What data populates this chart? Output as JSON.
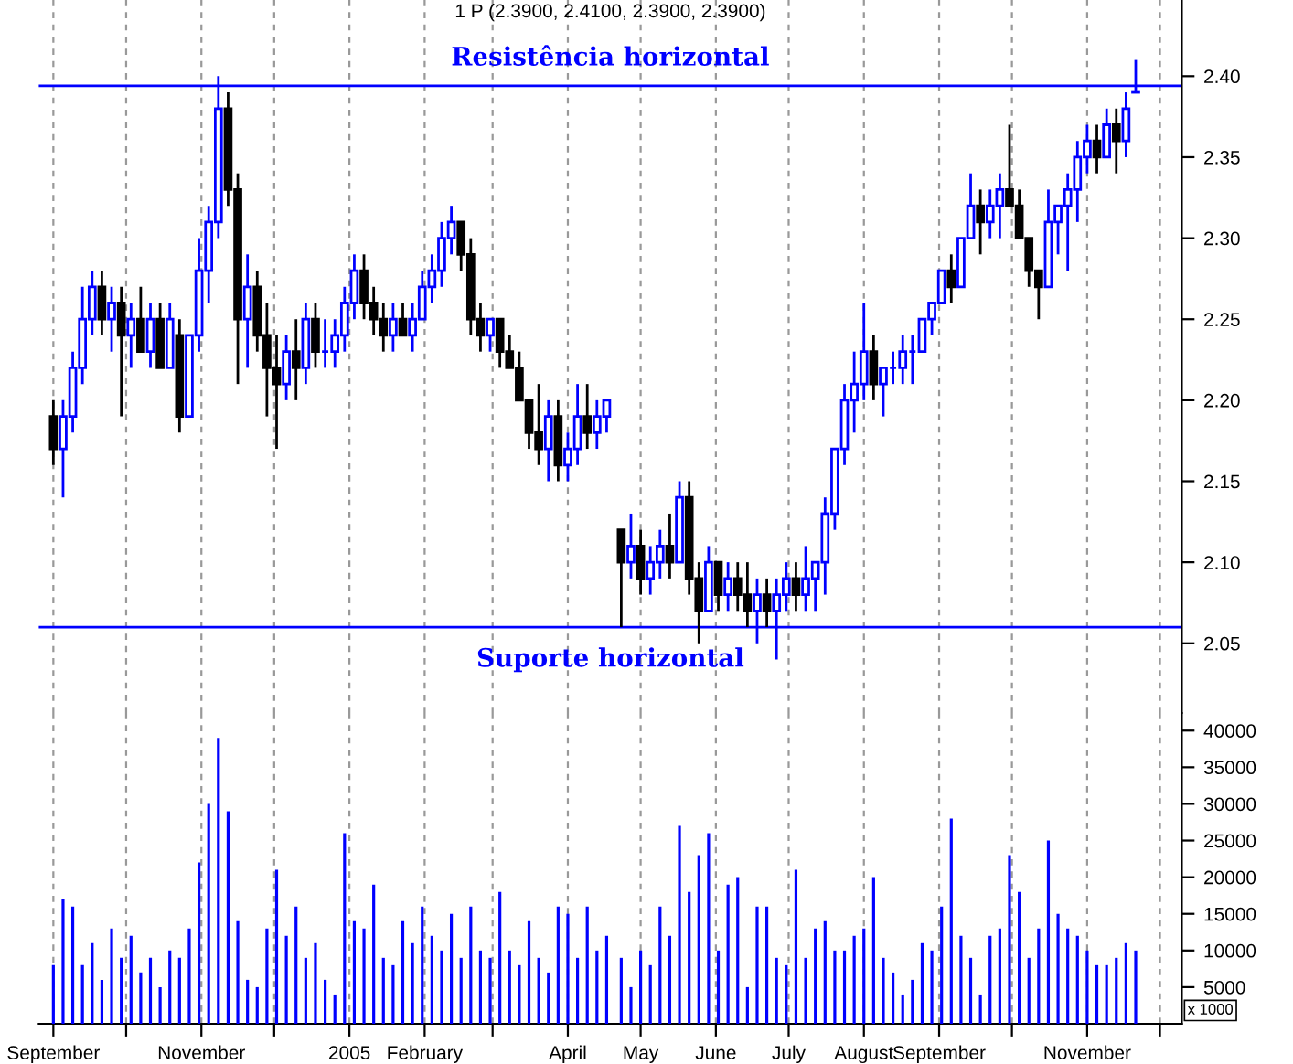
{
  "chart_data": [
    {
      "type": "candlestick",
      "title": "1 P (2.3900, 2.4100, 2.3900, 2.3900)",
      "x": [
        "2004-09-01",
        "2004-09-05",
        "2004-09-09",
        "2004-09-13",
        "2004-09-17",
        "2004-09-21",
        "2004-09-25",
        "2004-09-29",
        "2004-10-03",
        "2004-10-07",
        "2004-10-11",
        "2004-10-15",
        "2004-10-19",
        "2004-10-23",
        "2004-10-27",
        "2004-10-31",
        "2004-11-04",
        "2004-11-08",
        "2004-11-12",
        "2004-11-16",
        "2004-11-20",
        "2004-11-24",
        "2004-11-28",
        "2004-12-02",
        "2004-12-06",
        "2004-12-10",
        "2004-12-14",
        "2004-12-18",
        "2004-12-22",
        "2004-12-26",
        "2004-12-30",
        "2005-01-03",
        "2005-01-07",
        "2005-01-11",
        "2005-01-15",
        "2005-01-19",
        "2005-01-23",
        "2005-01-27",
        "2005-01-31",
        "2005-02-04",
        "2005-02-08",
        "2005-02-12",
        "2005-02-16",
        "2005-02-20",
        "2005-02-24",
        "2005-02-28",
        "2005-03-04",
        "2005-03-08",
        "2005-03-12",
        "2005-03-16",
        "2005-03-20",
        "2005-03-24",
        "2005-03-28",
        "2005-04-01",
        "2005-04-05",
        "2005-04-09",
        "2005-04-13",
        "2005-04-17",
        "2005-04-23",
        "2005-04-27",
        "2005-05-01",
        "2005-05-05",
        "2005-05-09",
        "2005-05-13",
        "2005-05-17",
        "2005-05-21",
        "2005-05-25",
        "2005-05-29",
        "2005-06-02",
        "2005-06-06",
        "2005-06-10",
        "2005-06-14",
        "2005-06-18",
        "2005-06-22",
        "2005-06-26",
        "2005-06-30",
        "2005-07-04",
        "2005-07-08",
        "2005-07-12",
        "2005-07-16",
        "2005-07-20",
        "2005-07-24",
        "2005-07-28",
        "2005-08-01",
        "2005-08-05",
        "2005-08-09",
        "2005-08-13",
        "2005-08-17",
        "2005-08-21",
        "2005-08-25",
        "2005-08-29",
        "2005-09-02",
        "2005-09-06",
        "2005-09-10",
        "2005-09-14",
        "2005-09-18",
        "2005-09-22",
        "2005-09-26",
        "2005-09-30",
        "2005-10-04",
        "2005-10-08",
        "2005-10-12",
        "2005-10-16",
        "2005-10-20",
        "2005-10-24",
        "2005-10-28",
        "2005-11-01",
        "2005-11-05",
        "2005-11-09",
        "2005-11-13",
        "2005-11-17",
        "2005-11-21"
      ],
      "ohlc": [
        [
          2.19,
          2.2,
          2.16,
          2.17
        ],
        [
          2.17,
          2.2,
          2.14,
          2.19
        ],
        [
          2.19,
          2.23,
          2.18,
          2.22
        ],
        [
          2.22,
          2.27,
          2.21,
          2.25
        ],
        [
          2.25,
          2.28,
          2.24,
          2.27
        ],
        [
          2.27,
          2.28,
          2.24,
          2.25
        ],
        [
          2.25,
          2.27,
          2.23,
          2.26
        ],
        [
          2.26,
          2.27,
          2.19,
          2.24
        ],
        [
          2.24,
          2.26,
          2.22,
          2.25
        ],
        [
          2.25,
          2.27,
          2.23,
          2.23
        ],
        [
          2.23,
          2.26,
          2.22,
          2.25
        ],
        [
          2.25,
          2.26,
          2.22,
          2.22
        ],
        [
          2.22,
          2.26,
          2.22,
          2.25
        ],
        [
          2.24,
          2.25,
          2.18,
          2.19
        ],
        [
          2.19,
          2.24,
          2.19,
          2.24
        ],
        [
          2.24,
          2.3,
          2.23,
          2.28
        ],
        [
          2.28,
          2.32,
          2.26,
          2.31
        ],
        [
          2.31,
          2.4,
          2.3,
          2.38
        ],
        [
          2.38,
          2.39,
          2.32,
          2.33
        ],
        [
          2.33,
          2.34,
          2.21,
          2.25
        ],
        [
          2.25,
          2.29,
          2.22,
          2.27
        ],
        [
          2.27,
          2.28,
          2.23,
          2.24
        ],
        [
          2.24,
          2.26,
          2.19,
          2.22
        ],
        [
          2.22,
          2.24,
          2.17,
          2.21
        ],
        [
          2.21,
          2.24,
          2.2,
          2.23
        ],
        [
          2.23,
          2.25,
          2.2,
          2.22
        ],
        [
          2.22,
          2.26,
          2.21,
          2.25
        ],
        [
          2.25,
          2.26,
          2.22,
          2.23
        ],
        [
          2.23,
          2.25,
          2.22,
          2.23
        ],
        [
          2.23,
          2.25,
          2.22,
          2.24
        ],
        [
          2.24,
          2.27,
          2.23,
          2.26
        ],
        [
          2.26,
          2.29,
          2.25,
          2.28
        ],
        [
          2.28,
          2.29,
          2.25,
          2.26
        ],
        [
          2.26,
          2.27,
          2.24,
          2.25
        ],
        [
          2.25,
          2.26,
          2.23,
          2.24
        ],
        [
          2.24,
          2.26,
          2.23,
          2.25
        ],
        [
          2.25,
          2.26,
          2.24,
          2.24
        ],
        [
          2.24,
          2.26,
          2.23,
          2.25
        ],
        [
          2.25,
          2.28,
          2.25,
          2.27
        ],
        [
          2.27,
          2.29,
          2.26,
          2.28
        ],
        [
          2.28,
          2.31,
          2.27,
          2.3
        ],
        [
          2.3,
          2.32,
          2.29,
          2.31
        ],
        [
          2.31,
          2.31,
          2.28,
          2.29
        ],
        [
          2.29,
          2.3,
          2.24,
          2.25
        ],
        [
          2.25,
          2.26,
          2.23,
          2.24
        ],
        [
          2.24,
          2.25,
          2.23,
          2.25
        ],
        [
          2.25,
          2.25,
          2.22,
          2.23
        ],
        [
          2.23,
          2.24,
          2.22,
          2.22
        ],
        [
          2.22,
          2.23,
          2.2,
          2.2
        ],
        [
          2.2,
          2.2,
          2.17,
          2.18
        ],
        [
          2.18,
          2.21,
          2.16,
          2.17
        ],
        [
          2.17,
          2.2,
          2.15,
          2.19
        ],
        [
          2.19,
          2.2,
          2.15,
          2.16
        ],
        [
          2.16,
          2.18,
          2.15,
          2.17
        ],
        [
          2.17,
          2.21,
          2.16,
          2.19
        ],
        [
          2.19,
          2.21,
          2.17,
          2.18
        ],
        [
          2.18,
          2.2,
          2.17,
          2.19
        ],
        [
          2.19,
          2.2,
          2.18,
          2.2
        ],
        [
          2.12,
          2.12,
          2.06,
          2.1
        ],
        [
          2.1,
          2.13,
          2.09,
          2.11
        ],
        [
          2.11,
          2.12,
          2.08,
          2.09
        ],
        [
          2.09,
          2.11,
          2.08,
          2.1
        ],
        [
          2.1,
          2.12,
          2.09,
          2.11
        ],
        [
          2.11,
          2.13,
          2.09,
          2.1
        ],
        [
          2.1,
          2.15,
          2.1,
          2.14
        ],
        [
          2.14,
          2.15,
          2.08,
          2.09
        ],
        [
          2.09,
          2.1,
          2.05,
          2.07
        ],
        [
          2.07,
          2.11,
          2.07,
          2.1
        ],
        [
          2.1,
          2.1,
          2.07,
          2.08
        ],
        [
          2.08,
          2.1,
          2.07,
          2.09
        ],
        [
          2.09,
          2.1,
          2.07,
          2.08
        ],
        [
          2.08,
          2.1,
          2.06,
          2.07
        ],
        [
          2.07,
          2.09,
          2.05,
          2.08
        ],
        [
          2.08,
          2.09,
          2.06,
          2.07
        ],
        [
          2.07,
          2.09,
          2.04,
          2.08
        ],
        [
          2.08,
          2.1,
          2.07,
          2.09
        ],
        [
          2.09,
          2.1,
          2.07,
          2.08
        ],
        [
          2.08,
          2.11,
          2.07,
          2.09
        ],
        [
          2.09,
          2.1,
          2.07,
          2.1
        ],
        [
          2.1,
          2.14,
          2.08,
          2.13
        ],
        [
          2.13,
          2.17,
          2.12,
          2.17
        ],
        [
          2.17,
          2.21,
          2.16,
          2.2
        ],
        [
          2.2,
          2.23,
          2.18,
          2.21
        ],
        [
          2.21,
          2.26,
          2.2,
          2.23
        ],
        [
          2.23,
          2.24,
          2.2,
          2.21
        ],
        [
          2.21,
          2.22,
          2.19,
          2.22
        ],
        [
          2.22,
          2.23,
          2.21,
          2.22
        ],
        [
          2.22,
          2.24,
          2.21,
          2.23
        ],
        [
          2.23,
          2.24,
          2.21,
          2.23
        ],
        [
          2.23,
          2.25,
          2.23,
          2.25
        ],
        [
          2.25,
          2.26,
          2.24,
          2.26
        ],
        [
          2.26,
          2.28,
          2.26,
          2.28
        ],
        [
          2.28,
          2.29,
          2.26,
          2.27
        ],
        [
          2.27,
          2.3,
          2.27,
          2.3
        ],
        [
          2.3,
          2.34,
          2.3,
          2.32
        ],
        [
          2.32,
          2.33,
          2.29,
          2.31
        ],
        [
          2.31,
          2.33,
          2.3,
          2.32
        ],
        [
          2.32,
          2.34,
          2.3,
          2.33
        ],
        [
          2.33,
          2.37,
          2.32,
          2.32
        ],
        [
          2.32,
          2.33,
          2.3,
          2.3
        ],
        [
          2.3,
          2.3,
          2.27,
          2.28
        ],
        [
          2.28,
          2.28,
          2.25,
          2.27
        ],
        [
          2.27,
          2.33,
          2.27,
          2.31
        ],
        [
          2.31,
          2.32,
          2.29,
          2.32
        ],
        [
          2.32,
          2.34,
          2.28,
          2.33
        ],
        [
          2.33,
          2.36,
          2.31,
          2.35
        ],
        [
          2.35,
          2.37,
          2.34,
          2.36
        ],
        [
          2.36,
          2.37,
          2.34,
          2.35
        ],
        [
          2.35,
          2.38,
          2.35,
          2.37
        ],
        [
          2.37,
          2.38,
          2.34,
          2.36
        ],
        [
          2.36,
          2.39,
          2.35,
          2.38
        ],
        [
          2.39,
          2.41,
          2.39,
          2.39
        ]
      ],
      "colors": [
        "#000000",
        "#0000ff",
        "#0000ff",
        "#0000ff",
        "#0000ff",
        "#000000",
        "#0000ff",
        "#000000",
        "#0000ff",
        "#000000",
        "#0000ff",
        "#000000",
        "#0000ff",
        "#000000",
        "#0000ff",
        "#0000ff",
        "#0000ff",
        "#0000ff",
        "#000000",
        "#000000",
        "#0000ff",
        "#000000",
        "#000000",
        "#000000",
        "#0000ff",
        "#000000",
        "#0000ff",
        "#000000",
        "#0000ff",
        "#0000ff",
        "#0000ff",
        "#0000ff",
        "#000000",
        "#000000",
        "#000000",
        "#0000ff",
        "#000000",
        "#0000ff",
        "#0000ff",
        "#0000ff",
        "#0000ff",
        "#0000ff",
        "#000000",
        "#000000",
        "#000000",
        "#0000ff",
        "#000000",
        "#000000",
        "#000000",
        "#000000",
        "#000000",
        "#0000ff",
        "#000000",
        "#0000ff",
        "#0000ff",
        "#000000",
        "#0000ff",
        "#0000ff",
        "#000000",
        "#0000ff",
        "#000000",
        "#0000ff",
        "#0000ff",
        "#000000",
        "#0000ff",
        "#000000",
        "#000000",
        "#0000ff",
        "#000000",
        "#0000ff",
        "#000000",
        "#000000",
        "#0000ff",
        "#000000",
        "#0000ff",
        "#0000ff",
        "#000000",
        "#0000ff",
        "#0000ff",
        "#0000ff",
        "#0000ff",
        "#0000ff",
        "#0000ff",
        "#0000ff",
        "#000000",
        "#0000ff",
        "#0000ff",
        "#0000ff",
        "#0000ff",
        "#0000ff",
        "#0000ff",
        "#0000ff",
        "#000000",
        "#0000ff",
        "#0000ff",
        "#000000",
        "#0000ff",
        "#0000ff",
        "#000000",
        "#000000",
        "#000000",
        "#000000",
        "#0000ff",
        "#0000ff",
        "#0000ff",
        "#0000ff",
        "#0000ff",
        "#000000",
        "#0000ff",
        "#000000",
        "#0000ff",
        "#0000ff"
      ],
      "xlim": [
        "2004-08-26",
        "2005-12-10"
      ],
      "xticks": [
        {
          "value": "2004-09-01",
          "label": null
        },
        {
          "value": "2004-10-01",
          "label": null
        },
        {
          "value": "2004-11-01",
          "label": null
        },
        {
          "value": "2004-12-01",
          "label": null
        },
        {
          "value": "2005-01-01",
          "label": null
        },
        {
          "value": "2005-02-01",
          "label": null
        },
        {
          "value": "2005-03-01",
          "label": null
        },
        {
          "value": "2005-04-01",
          "label": null
        },
        {
          "value": "2005-05-01",
          "label": null
        },
        {
          "value": "2005-06-01",
          "label": null
        },
        {
          "value": "2005-07-01",
          "label": null
        },
        {
          "value": "2005-08-01",
          "label": null
        },
        {
          "value": "2005-09-01",
          "label": null
        },
        {
          "value": "2005-10-01",
          "label": null
        },
        {
          "value": "2005-11-01",
          "label": null
        },
        {
          "value": "2005-12-01",
          "label": null
        }
      ],
      "ylim": [
        2.007,
        2.447
      ],
      "yticks": [
        {
          "value": 2.05,
          "label": "2.05"
        },
        {
          "value": 2.1,
          "label": "2.10"
        },
        {
          "value": 2.15,
          "label": "2.15"
        },
        {
          "value": 2.2,
          "label": "2.20"
        },
        {
          "value": 2.25,
          "label": "2.25"
        },
        {
          "value": 2.3,
          "label": "2.30"
        },
        {
          "value": 2.35,
          "label": "2.35"
        },
        {
          "value": 2.4,
          "label": "2.40"
        }
      ],
      "ref_lines": [
        {
          "axis": "y",
          "value": 2.394,
          "label": "Resistência horizontal",
          "color": "#0000ff"
        },
        {
          "axis": "y",
          "value": 2.06,
          "label": "Suporte horizontal",
          "color": "#0000ff"
        }
      ],
      "grid": "x",
      "tick_labels": "y"
    },
    {
      "type": "bar",
      "color": "#0000ff",
      "x": [
        "2004-09-01",
        "2004-09-05",
        "2004-09-09",
        "2004-09-13",
        "2004-09-17",
        "2004-09-21",
        "2004-09-25",
        "2004-09-29",
        "2004-10-03",
        "2004-10-07",
        "2004-10-11",
        "2004-10-15",
        "2004-10-19",
        "2004-10-23",
        "2004-10-27",
        "2004-10-31",
        "2004-11-04",
        "2004-11-08",
        "2004-11-12",
        "2004-11-16",
        "2004-11-20",
        "2004-11-24",
        "2004-11-28",
        "2004-12-02",
        "2004-12-06",
        "2004-12-10",
        "2004-12-14",
        "2004-12-18",
        "2004-12-22",
        "2004-12-26",
        "2004-12-30",
        "2005-01-03",
        "2005-01-07",
        "2005-01-11",
        "2005-01-15",
        "2005-01-19",
        "2005-01-23",
        "2005-01-27",
        "2005-01-31",
        "2005-02-04",
        "2005-02-08",
        "2005-02-12",
        "2005-02-16",
        "2005-02-20",
        "2005-02-24",
        "2005-02-28",
        "2005-03-04",
        "2005-03-08",
        "2005-03-12",
        "2005-03-16",
        "2005-03-20",
        "2005-03-24",
        "2005-03-28",
        "2005-04-01",
        "2005-04-05",
        "2005-04-09",
        "2005-04-13",
        "2005-04-17",
        "2005-04-23",
        "2005-04-27",
        "2005-05-01",
        "2005-05-05",
        "2005-05-09",
        "2005-05-13",
        "2005-05-17",
        "2005-05-21",
        "2005-05-25",
        "2005-05-29",
        "2005-06-02",
        "2005-06-06",
        "2005-06-10",
        "2005-06-14",
        "2005-06-18",
        "2005-06-22",
        "2005-06-26",
        "2005-06-30",
        "2005-07-04",
        "2005-07-08",
        "2005-07-12",
        "2005-07-16",
        "2005-07-20",
        "2005-07-24",
        "2005-07-28",
        "2005-08-01",
        "2005-08-05",
        "2005-08-09",
        "2005-08-13",
        "2005-08-17",
        "2005-08-21",
        "2005-08-25",
        "2005-08-29",
        "2005-09-02",
        "2005-09-06",
        "2005-09-10",
        "2005-09-14",
        "2005-09-18",
        "2005-09-22",
        "2005-09-26",
        "2005-09-30",
        "2005-10-04",
        "2005-10-08",
        "2005-10-12",
        "2005-10-16",
        "2005-10-20",
        "2005-10-24",
        "2005-10-28",
        "2005-11-01",
        "2005-11-05",
        "2005-11-09",
        "2005-11-13",
        "2005-11-17",
        "2005-11-21"
      ],
      "values": [
        8000,
        17000,
        16000,
        8000,
        11000,
        6000,
        13000,
        9000,
        12000,
        7000,
        9000,
        5000,
        10000,
        9000,
        13000,
        22000,
        30000,
        39000,
        29000,
        14000,
        6000,
        5000,
        13000,
        21000,
        12000,
        16000,
        9000,
        11000,
        6000,
        4000,
        26000,
        14000,
        13000,
        19000,
        9000,
        8000,
        14000,
        11000,
        16000,
        12000,
        10000,
        15000,
        9000,
        16000,
        10000,
        9000,
        18000,
        10000,
        8000,
        14000,
        9000,
        7000,
        16000,
        15000,
        9000,
        16000,
        10000,
        12000,
        9000,
        5000,
        10000,
        8000,
        16000,
        12000,
        27000,
        18000,
        23000,
        26000,
        10000,
        19000,
        20000,
        5000,
        16000,
        16000,
        9000,
        8000,
        21000,
        9000,
        13000,
        14000,
        10000,
        10000,
        12000,
        13000,
        20000,
        9000,
        7000,
        4000,
        6000,
        11000,
        10000,
        16000,
        28000,
        12000,
        9000,
        4000,
        12000,
        13000,
        23000,
        18000,
        9000,
        13000,
        25000,
        15000,
        13000,
        12000,
        10000,
        8000,
        8000,
        9000,
        11000,
        10000
      ],
      "xlim": [
        "2004-08-26",
        "2005-12-10"
      ],
      "xticks": [
        {
          "value": "2004-09-01",
          "label": "September"
        },
        {
          "value": "2004-10-01",
          "label": null
        },
        {
          "value": "2004-11-01",
          "label": "November"
        },
        {
          "value": "2004-12-01",
          "label": null
        },
        {
          "value": "2005-01-01",
          "label": "2005"
        },
        {
          "value": "2005-02-01",
          "label": "February"
        },
        {
          "value": "2005-03-01",
          "label": null
        },
        {
          "value": "2005-04-01",
          "label": "April"
        },
        {
          "value": "2005-05-01",
          "label": "May"
        },
        {
          "value": "2005-06-01",
          "label": "June"
        },
        {
          "value": "2005-07-01",
          "label": "July"
        },
        {
          "value": "2005-08-01",
          "label": "August"
        },
        {
          "value": "2005-09-01",
          "label": "September"
        },
        {
          "value": "2005-10-01",
          "label": null
        },
        {
          "value": "2005-11-01",
          "label": "November"
        },
        {
          "value": "2005-12-01",
          "label": null
        }
      ],
      "ylim": [
        0,
        42400
      ],
      "yticks": [
        5000,
        10000,
        15000,
        20000,
        25000,
        30000,
        35000,
        40000
      ],
      "annotations": [
        "x 1000"
      ],
      "grid": "x"
    }
  ]
}
